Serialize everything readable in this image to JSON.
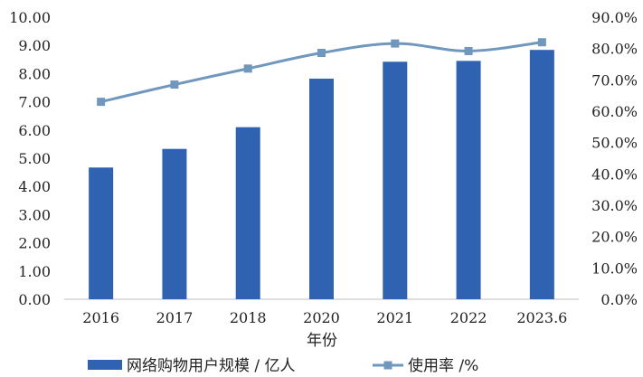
{
  "chart_data": {
    "type": "bar",
    "categories": [
      "2016",
      "2017",
      "2018",
      "2020",
      "2021",
      "2022",
      "2023.6"
    ],
    "series": [
      {
        "name": "网络购物用户规模 / 亿人",
        "type": "bar",
        "axis": "left",
        "color": "#2f62b0",
        "values": [
          4.67,
          5.33,
          6.1,
          7.82,
          8.42,
          8.45,
          8.84
        ]
      },
      {
        "name": "使用率 /%",
        "type": "line",
        "axis": "right",
        "color": "#7097bd",
        "values": [
          63.0,
          68.5,
          73.6,
          78.6,
          81.6,
          79.2,
          82.0
        ]
      }
    ],
    "xlabel": "年份",
    "ylabel": "",
    "y2label": "",
    "ylim": [
      0,
      10
    ],
    "y2lim": [
      0,
      90
    ],
    "yticks": [
      "0.00",
      "1.00",
      "2.00",
      "3.00",
      "4.00",
      "5.00",
      "6.00",
      "7.00",
      "8.00",
      "9.00",
      "10.00"
    ],
    "y2ticks": [
      "0.0%",
      "10.0%",
      "20.0%",
      "30.0%",
      "40.0%",
      "50.0%",
      "60.0%",
      "70.0%",
      "80.0%",
      "90.0%"
    ],
    "grid": false,
    "legend_position": "bottom"
  }
}
